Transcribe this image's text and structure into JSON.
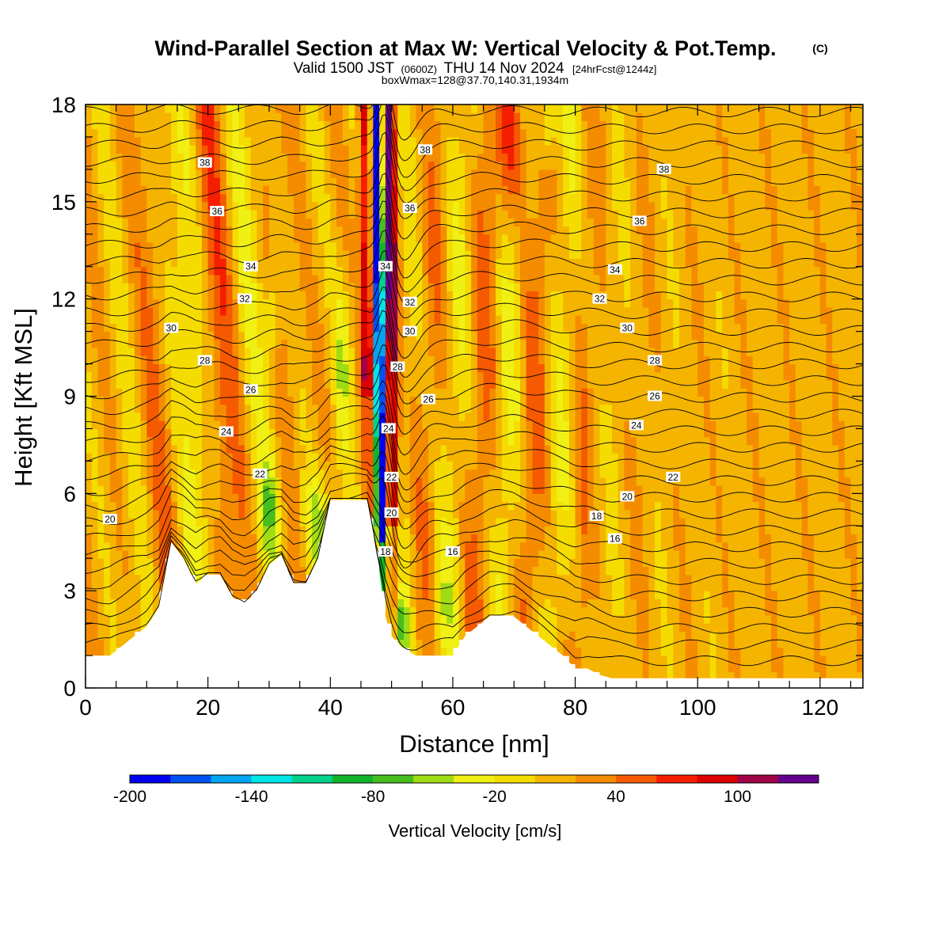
{
  "title": {
    "main": "Wind-Parallel Section at Max W: Vertical Velocity & Pot.Temp.",
    "copyright": "(C)",
    "valid_prefix": "Valid 1500 JST",
    "valid_utc": "(0600Z)",
    "valid_date": "THU 14 Nov 2024",
    "forecast": "[24hrFcst@1244z]",
    "box_info": "boxWmax=128@37.70,140.31,1934m"
  },
  "chart_data": {
    "type": "heatmap",
    "title": "Wind-Parallel Section at Max W: Vertical Velocity & Pot.Temp.",
    "xlabel": "Distance [nm]",
    "ylabel": "Height [Kft MSL]",
    "xlim": [
      0,
      127
    ],
    "ylim": [
      0,
      18
    ],
    "x_ticks": [
      "0",
      "20",
      "40",
      "60",
      "80",
      "100",
      "120"
    ],
    "y_ticks": [
      "0",
      "3",
      "6",
      "9",
      "12",
      "15",
      "18"
    ],
    "colorbar": {
      "label": "Vertical Velocity [cm/s]",
      "tick_labels": [
        "-200",
        "-140",
        "-80",
        "-20",
        "40",
        "100"
      ],
      "tick_values": [
        -200,
        -140,
        -80,
        -20,
        40,
        100
      ],
      "bins": [
        -200,
        -180,
        -160,
        -140,
        -120,
        -100,
        -80,
        -60,
        -40,
        -20,
        0,
        20,
        40,
        60,
        80,
        100,
        120,
        140
      ],
      "colors": [
        "#0000f0",
        "#0050f0",
        "#00a5f0",
        "#00e6e6",
        "#00d28c",
        "#10b42a",
        "#46be1e",
        "#a0dc14",
        "#f0f014",
        "#f5dc00",
        "#f5b400",
        "#f58c00",
        "#f55a00",
        "#f51e00",
        "#dc0000",
        "#a00046",
        "#64008c"
      ]
    },
    "terrain_profile": {
      "x": [
        0,
        4,
        6,
        8,
        10,
        12,
        14,
        16,
        18,
        20,
        22,
        24,
        26,
        28,
        30,
        32,
        34,
        36,
        38,
        40,
        42,
        44,
        46,
        47,
        48,
        49,
        50,
        52,
        54,
        56,
        58,
        60,
        62,
        64,
        66,
        68,
        70,
        72,
        74,
        76,
        78,
        80,
        82,
        84,
        86,
        90,
        100,
        110,
        120,
        127
      ],
      "height_kft": [
        1.0,
        1.0,
        1.3,
        1.6,
        1.9,
        2.5,
        4.5,
        4.0,
        3.2,
        3.5,
        3.5,
        2.8,
        2.6,
        3.0,
        3.8,
        4.1,
        3.2,
        3.2,
        4.0,
        5.8,
        5.8,
        5.8,
        5.8,
        4.8,
        3.6,
        2.2,
        1.6,
        1.2,
        1.0,
        1.0,
        1.0,
        1.0,
        1.6,
        1.9,
        2.2,
        2.2,
        2.2,
        1.9,
        1.6,
        1.3,
        1.0,
        0.6,
        0.6,
        0.4,
        0.3,
        0.3,
        0.3,
        0.3,
        0.3,
        0.3
      ]
    },
    "updraft_core": {
      "description_values_cm_s": [
        128,
        100,
        60,
        -60,
        -160
      ],
      "center_x_bottom": 49,
      "center_x_top": 48
    },
    "theta_contour_labels": [
      {
        "value": "38",
        "x": 19.5,
        "y": 16.2
      },
      {
        "value": "38",
        "x": 55.5,
        "y": 16.6
      },
      {
        "value": "38",
        "x": 94.5,
        "y": 16.0
      },
      {
        "value": "36",
        "x": 21.5,
        "y": 14.7
      },
      {
        "value": "36",
        "x": 53.0,
        "y": 14.8
      },
      {
        "value": "36",
        "x": 90.5,
        "y": 14.4
      },
      {
        "value": "34",
        "x": 27.0,
        "y": 13.0
      },
      {
        "value": "34",
        "x": 49.0,
        "y": 13.0
      },
      {
        "value": "34",
        "x": 86.5,
        "y": 12.9
      },
      {
        "value": "32",
        "x": 26.0,
        "y": 12.0
      },
      {
        "value": "32",
        "x": 53.0,
        "y": 11.9
      },
      {
        "value": "32",
        "x": 84.0,
        "y": 12.0
      },
      {
        "value": "30",
        "x": 14.0,
        "y": 11.1
      },
      {
        "value": "30",
        "x": 53.0,
        "y": 11.0
      },
      {
        "value": "30",
        "x": 88.5,
        "y": 11.1
      },
      {
        "value": "28",
        "x": 19.5,
        "y": 10.1
      },
      {
        "value": "28",
        "x": 51.0,
        "y": 9.9
      },
      {
        "value": "28",
        "x": 93.0,
        "y": 10.1
      },
      {
        "value": "26",
        "x": 27.0,
        "y": 9.2
      },
      {
        "value": "26",
        "x": 56.0,
        "y": 8.9
      },
      {
        "value": "26",
        "x": 93.0,
        "y": 9.0
      },
      {
        "value": "24",
        "x": 23.0,
        "y": 7.9
      },
      {
        "value": "24",
        "x": 49.5,
        "y": 8.0
      },
      {
        "value": "24",
        "x": 90.0,
        "y": 8.1
      },
      {
        "value": "22",
        "x": 28.5,
        "y": 6.6
      },
      {
        "value": "22",
        "x": 50.0,
        "y": 6.5
      },
      {
        "value": "22",
        "x": 96.0,
        "y": 6.5
      },
      {
        "value": "20",
        "x": 4.0,
        "y": 5.2
      },
      {
        "value": "20",
        "x": 50.0,
        "y": 5.4
      },
      {
        "value": "20",
        "x": 88.5,
        "y": 5.9
      },
      {
        "value": "18",
        "x": 49.0,
        "y": 4.2
      },
      {
        "value": "18",
        "x": 83.5,
        "y": 5.3
      },
      {
        "value": "16",
        "x": 60.0,
        "y": 4.2
      },
      {
        "value": "16",
        "x": 86.5,
        "y": 4.6
      }
    ],
    "theta_levels_K_labelled": [
      16,
      18,
      20,
      22,
      24,
      26,
      28,
      30,
      32,
      34,
      36,
      38
    ]
  }
}
